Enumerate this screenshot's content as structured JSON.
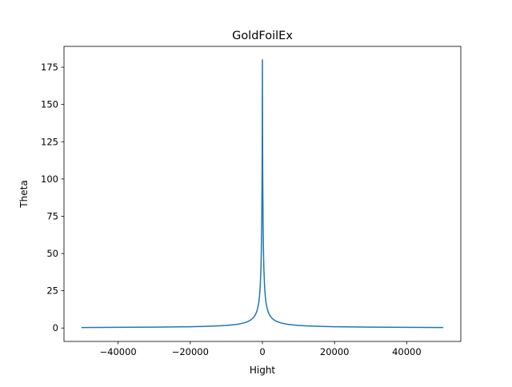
{
  "chart_data": {
    "type": "line",
    "title": "GoldFoilEx",
    "xlabel": "Hight",
    "ylabel": "Theta",
    "xlim": [
      -55000,
      55000
    ],
    "ylim": [
      -9,
      189
    ],
    "xticks": [
      -40000,
      -20000,
      0,
      20000,
      40000
    ],
    "xtick_labels": [
      "−40000",
      "−20000",
      "0",
      "20000",
      "40000"
    ],
    "yticks": [
      0,
      25,
      50,
      75,
      100,
      125,
      150,
      175
    ],
    "ytick_labels": [
      "0",
      "25",
      "50",
      "75",
      "100",
      "125",
      "150",
      "175"
    ],
    "grid": false,
    "legend": "none",
    "series": [
      {
        "color": "#1f77b4",
        "x": [
          -50000,
          -45000,
          -40000,
          -35000,
          -30000,
          -25000,
          -20000,
          -17500,
          -15000,
          -12500,
          -10000,
          -9000,
          -8000,
          -7000,
          -6000,
          -5000,
          -4500,
          -4000,
          -3500,
          -3000,
          -2500,
          -2000,
          -1750,
          -1500,
          -1250,
          -1000,
          -800,
          -600,
          -400,
          -300,
          -200,
          -100,
          -50,
          0,
          50,
          100,
          200,
          300,
          400,
          600,
          800,
          1000,
          1250,
          1500,
          1750,
          2000,
          2500,
          3000,
          3500,
          4000,
          4500,
          5000,
          6000,
          7000,
          8000,
          9000,
          10000,
          12500,
          15000,
          17500,
          20000,
          25000,
          30000,
          35000,
          40000,
          45000,
          50000
        ],
        "y": [
          0.35,
          0.39,
          0.44,
          0.5,
          0.58,
          0.7,
          0.88,
          1.0,
          1.17,
          1.4,
          1.75,
          1.95,
          2.19,
          2.5,
          2.92,
          3.5,
          3.89,
          4.37,
          4.99,
          5.82,
          6.97,
          8.7,
          9.93,
          11.56,
          13.82,
          17.16,
          21.33,
          28.07,
          40.4,
          51.49,
          68.1,
          98.04,
          125.7,
          180.0,
          125.7,
          98.04,
          68.1,
          51.49,
          40.4,
          28.07,
          21.33,
          17.16,
          13.82,
          11.56,
          9.93,
          8.7,
          6.97,
          5.82,
          4.99,
          4.37,
          3.89,
          3.5,
          2.92,
          2.5,
          2.19,
          1.95,
          1.75,
          1.4,
          1.17,
          1.0,
          0.88,
          0.7,
          0.58,
          0.5,
          0.44,
          0.39,
          0.35
        ]
      }
    ]
  }
}
